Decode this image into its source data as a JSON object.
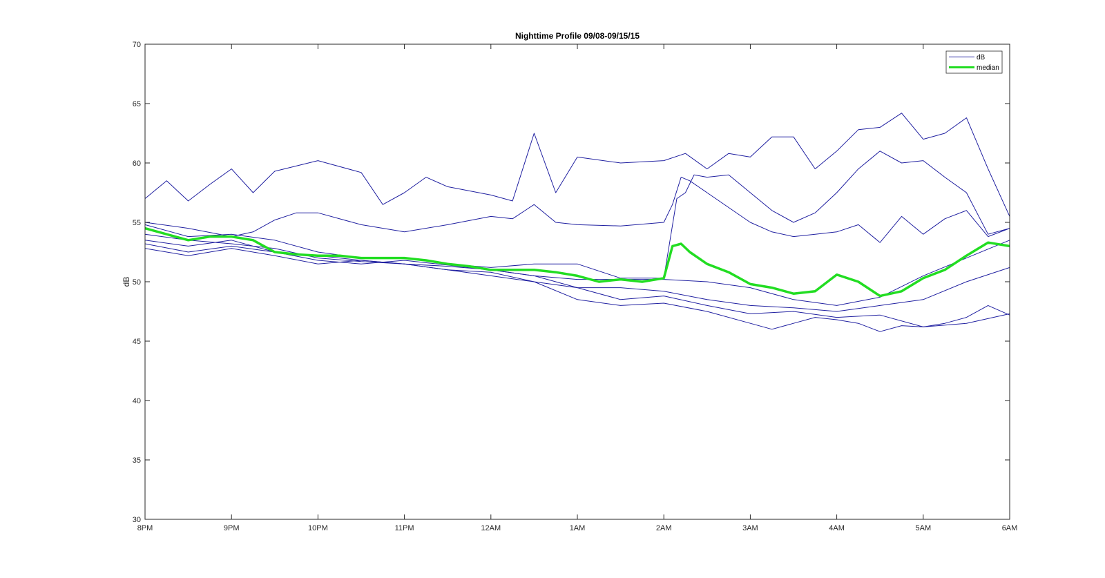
{
  "chart_data": {
    "type": "line",
    "title": "Nighttime Profile 09/08-09/15/15",
    "xlabel": "",
    "ylabel": "dB",
    "ylim": [
      30,
      70
    ],
    "y_ticks": [
      30,
      35,
      40,
      45,
      50,
      55,
      60,
      65,
      70
    ],
    "xlim": [
      0,
      10
    ],
    "x_unit": "hours after 8PM",
    "x_ticks": [
      0,
      1,
      2,
      3,
      4,
      5,
      6,
      7,
      8,
      9,
      10
    ],
    "x_tick_labels": [
      "8PM",
      "9PM",
      "10PM",
      "11PM",
      "12AM",
      "1AM",
      "2AM",
      "3AM",
      "4AM",
      "5AM",
      "6AM"
    ],
    "grid": false,
    "legend": {
      "position": "top-right",
      "entries": [
        "dB",
        "median"
      ]
    },
    "colors": {
      "dB": "#1f1fa0",
      "median": "#22dd22"
    },
    "series": [
      {
        "name": "dB",
        "x": [
          0,
          0.25,
          0.5,
          0.75,
          1,
          1.25,
          1.5,
          2,
          2.5,
          2.75,
          3,
          3.25,
          3.5,
          4,
          4.25,
          4.5,
          4.75,
          5,
          5.5,
          6,
          6.25,
          6.5,
          6.75,
          7,
          7.25,
          7.5,
          7.75,
          8,
          8.25,
          8.5,
          8.75,
          9,
          9.25,
          9.5,
          9.75,
          10
        ],
        "values": [
          57,
          58.5,
          56.8,
          58.2,
          59.5,
          57.5,
          59.3,
          60.2,
          59.2,
          56.5,
          57.5,
          58.8,
          58,
          57.3,
          56.8,
          62.5,
          57.5,
          60.5,
          60,
          60.2,
          60.8,
          59.5,
          60.8,
          60.5,
          62.2,
          62.2,
          59.5,
          61,
          62.8,
          63,
          64.2,
          62,
          62.5,
          63.8,
          59.5,
          55.5
        ]
      },
      {
        "name": "dB",
        "x": [
          0,
          0.5,
          1,
          1.25,
          1.5,
          1.75,
          2,
          2.5,
          3,
          3.5,
          4,
          4.25,
          4.5,
          4.75,
          5,
          5.5,
          6,
          6.1,
          6.2,
          6.3,
          6.5,
          7,
          7.25,
          7.5,
          7.75,
          8,
          8.25,
          8.5,
          8.75,
          9,
          9.25,
          9.5,
          9.75,
          10
        ],
        "values": [
          55,
          54.5,
          53.8,
          54.2,
          55.2,
          55.8,
          55.8,
          54.8,
          54.2,
          54.8,
          55.5,
          55.3,
          56.5,
          55,
          54.8,
          54.7,
          55,
          56.5,
          58.8,
          58.5,
          57.5,
          55,
          54.2,
          53.8,
          54,
          54.2,
          54.8,
          53.3,
          55.5,
          54,
          55.3,
          56,
          53.8,
          54.5
        ]
      },
      {
        "name": "dB",
        "x": [
          0,
          0.5,
          1,
          1.5,
          2,
          2.5,
          3,
          3.5,
          4,
          4.5,
          5,
          5.5,
          6,
          6.15,
          6.25,
          6.35,
          6.5,
          6.75,
          7,
          7.25,
          7.5,
          7.75,
          8,
          8.25,
          8.5,
          8.75,
          9,
          9.25,
          9.5,
          9.75,
          10
        ],
        "values": [
          54.8,
          53.8,
          54,
          53.5,
          52.5,
          52,
          52,
          51.5,
          51.2,
          51.5,
          51.5,
          50.3,
          50.3,
          57,
          57.5,
          59,
          58.8,
          59,
          57.5,
          56,
          55,
          55.8,
          57.5,
          59.5,
          61,
          60,
          60.2,
          58.8,
          57.5,
          54,
          54.5
        ]
      },
      {
        "name": "dB",
        "x": [
          0,
          0.5,
          1,
          1.5,
          2,
          2.5,
          3,
          3.5,
          4,
          4.5,
          5,
          5.5,
          6,
          6.5,
          7,
          7.5,
          8,
          8.5,
          9,
          9.5,
          10
        ],
        "values": [
          53.2,
          52.5,
          53,
          52.5,
          51.8,
          51.5,
          51.8,
          51.4,
          51,
          50.5,
          50.2,
          50.2,
          50.2,
          50,
          49.5,
          48.5,
          48,
          48.7,
          50.5,
          52,
          53.5
        ]
      },
      {
        "name": "dB",
        "x": [
          0,
          0.5,
          1,
          1.5,
          2,
          2.5,
          3,
          3.5,
          4,
          4.5,
          5,
          5.5,
          6,
          6.5,
          7,
          7.5,
          8,
          8.5,
          9,
          9.5,
          10
        ],
        "values": [
          52.8,
          52.2,
          52.8,
          52.2,
          51.5,
          51.8,
          51.5,
          51,
          50.5,
          50,
          49.5,
          49.5,
          49.2,
          48.5,
          48,
          47.8,
          47.5,
          48,
          48.5,
          50,
          51.2
        ]
      },
      {
        "name": "dB",
        "x": [
          0,
          0.5,
          1,
          1.5,
          2,
          2.5,
          3,
          3.5,
          4,
          4.5,
          5,
          5.5,
          6,
          6.5,
          7,
          7.5,
          8,
          8.5,
          9,
          9.5,
          10
        ],
        "values": [
          54,
          53.5,
          53.2,
          52.8,
          52,
          51.7,
          51.5,
          51.3,
          51,
          50.5,
          49.5,
          48.5,
          48.8,
          48,
          47.3,
          47.5,
          47,
          47.2,
          46.2,
          46.5,
          47.3
        ]
      },
      {
        "name": "dB",
        "x": [
          0,
          0.5,
          1,
          1.5,
          2,
          2.5,
          3,
          3.5,
          4,
          4.5,
          5,
          5.5,
          6,
          6.5,
          7,
          7.25,
          7.5,
          7.75,
          8,
          8.25,
          8.5,
          8.75,
          9,
          9.25,
          9.5,
          9.75,
          10
        ],
        "values": [
          53.5,
          53,
          53.5,
          52.5,
          52.2,
          51.8,
          51.5,
          51,
          50.8,
          50,
          48.5,
          48,
          48.2,
          47.5,
          46.5,
          46,
          46.5,
          47,
          46.8,
          46.5,
          45.8,
          46.3,
          46.2,
          46.5,
          47,
          48,
          47.2
        ]
      },
      {
        "name": "median",
        "x": [
          0,
          0.25,
          0.5,
          0.75,
          1,
          1.25,
          1.5,
          1.75,
          2,
          2.25,
          2.5,
          2.75,
          3,
          3.25,
          3.5,
          3.75,
          4,
          4.25,
          4.5,
          4.75,
          5,
          5.25,
          5.5,
          5.75,
          6,
          6.1,
          6.2,
          6.3,
          6.5,
          6.75,
          7,
          7.25,
          7.5,
          7.75,
          8,
          8.25,
          8.5,
          8.75,
          9,
          9.25,
          9.5,
          9.75,
          10
        ],
        "values": [
          54.5,
          54,
          53.5,
          53.8,
          53.8,
          53.5,
          52.5,
          52.3,
          52.2,
          52.2,
          52,
          52,
          52,
          51.8,
          51.5,
          51.3,
          51,
          51,
          51,
          50.8,
          50.5,
          50,
          50.2,
          50,
          50.3,
          53,
          53.2,
          52.5,
          51.5,
          50.8,
          49.8,
          49.5,
          49,
          49.2,
          50.6,
          50,
          48.8,
          49.2,
          50.3,
          51,
          52.2,
          53.3,
          53
        ]
      }
    ]
  }
}
